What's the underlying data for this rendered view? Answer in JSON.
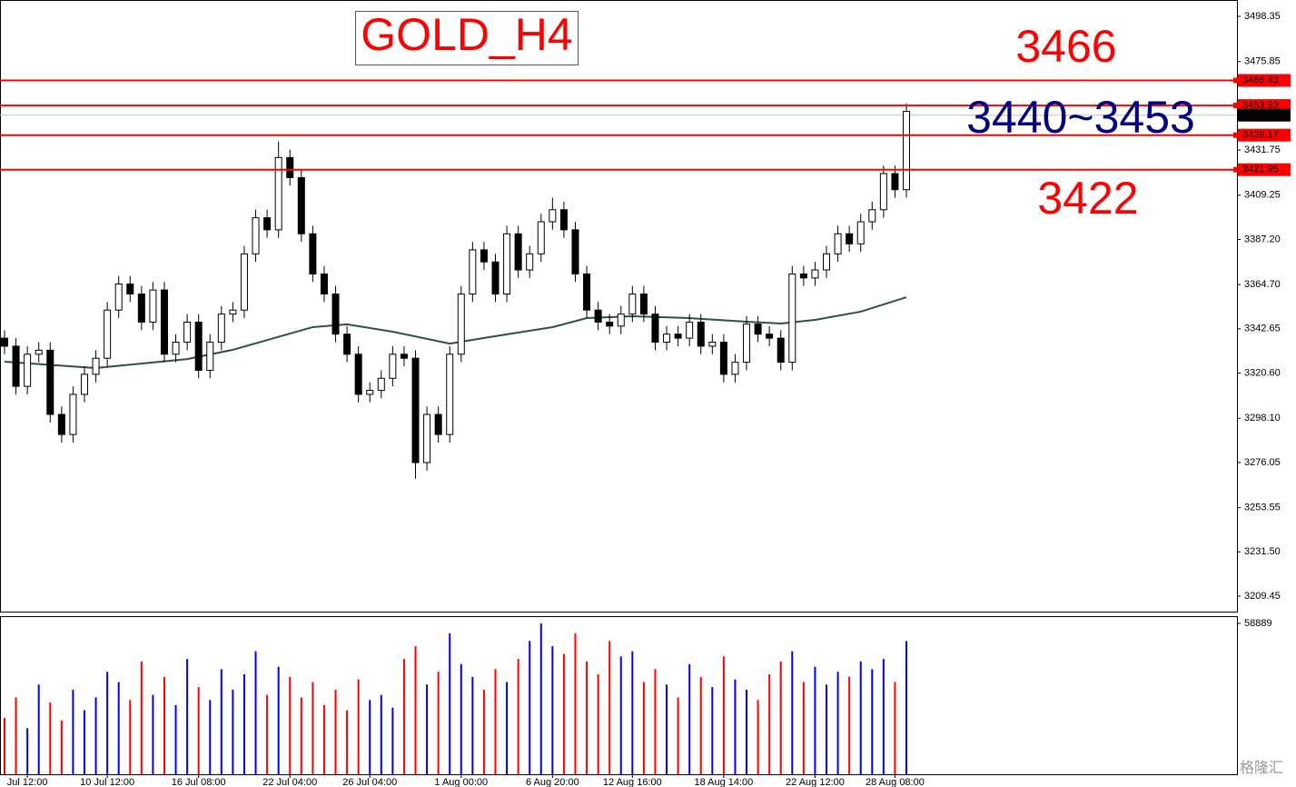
{
  "chart_data": {
    "type": "candlestick",
    "title": "GOLD_H4",
    "annotations": [
      {
        "text": "3466",
        "color": "#ff0000"
      },
      {
        "text": "3440~3453",
        "color": "#000080"
      },
      {
        "text": "3422",
        "color": "#ff0000"
      }
    ],
    "categories": [
      null,
      null,
      "Jul 12:00",
      null,
      null,
      null,
      null,
      null,
      null,
      "10 Jul 12:00",
      null,
      null,
      null,
      null,
      null,
      null,
      null,
      "16 Jul 08:00",
      null,
      null,
      null,
      null,
      null,
      null,
      null,
      "22 Jul 04:00",
      null,
      null,
      null,
      null,
      null,
      null,
      "26 Jul 04:00",
      null,
      null,
      null,
      null,
      null,
      null,
      null,
      "1 Aug 00:00",
      null,
      null,
      null,
      null,
      null,
      null,
      null,
      "6 Aug 20:00",
      null,
      null,
      null,
      null,
      null,
      null,
      "12 Aug 16:00",
      null,
      null,
      null,
      null,
      null,
      null,
      null,
      "18 Aug 14:00",
      null,
      null,
      null,
      null,
      null,
      null,
      null,
      "22 Aug 12:00",
      null,
      null,
      null,
      null,
      null,
      null,
      "28 Aug 08:00",
      null
    ],
    "open": [
      3338,
      3334,
      3314,
      3330,
      3332,
      3300,
      3290,
      3310,
      3320,
      3328,
      3352,
      3365,
      3360,
      3346,
      3362,
      3330,
      3336,
      3346,
      3322,
      3336,
      3350,
      3352,
      3380,
      3398,
      3392,
      3428,
      3418,
      3390,
      3370,
      3360,
      3340,
      3330,
      3310,
      3312,
      3318,
      3330,
      3328,
      3276,
      3300,
      3290,
      3330,
      3360,
      3382,
      3376,
      3360,
      3390,
      3372,
      3380,
      3396,
      3402,
      3392,
      3370,
      3352,
      3346,
      3344,
      3350,
      3360,
      3350,
      3336,
      3340,
      3338,
      3346,
      3334,
      3336,
      3320,
      3326,
      3345,
      3340,
      3338,
      3326,
      3370,
      3368,
      3372,
      3380,
      3390,
      3385,
      3396,
      3402,
      3420,
      3412
    ],
    "high": [
      3342,
      3338,
      3334,
      3336,
      3336,
      3304,
      3314,
      3324,
      3332,
      3356,
      3369,
      3369,
      3364,
      3366,
      3366,
      3340,
      3350,
      3350,
      3340,
      3354,
      3356,
      3384,
      3402,
      3402,
      3436,
      3432,
      3422,
      3394,
      3374,
      3364,
      3344,
      3334,
      3316,
      3322,
      3334,
      3334,
      3332,
      3304,
      3304,
      3334,
      3364,
      3386,
      3386,
      3380,
      3394,
      3394,
      3384,
      3400,
      3408,
      3406,
      3396,
      3374,
      3356,
      3350,
      3354,
      3364,
      3364,
      3354,
      3344,
      3344,
      3350,
      3350,
      3340,
      3340,
      3330,
      3349,
      3349,
      3344,
      3342,
      3374,
      3374,
      3376,
      3384,
      3394,
      3394,
      3400,
      3406,
      3424,
      3424,
      3455
    ],
    "low": [
      3330,
      3310,
      3310,
      3326,
      3296,
      3286,
      3286,
      3306,
      3316,
      3324,
      3348,
      3356,
      3342,
      3342,
      3326,
      3326,
      3332,
      3318,
      3318,
      3332,
      3346,
      3348,
      3376,
      3388,
      3388,
      3414,
      3386,
      3366,
      3356,
      3336,
      3326,
      3306,
      3306,
      3308,
      3314,
      3324,
      3268,
      3272,
      3286,
      3286,
      3326,
      3356,
      3372,
      3356,
      3356,
      3368,
      3368,
      3376,
      3392,
      3388,
      3366,
      3348,
      3342,
      3340,
      3340,
      3346,
      3346,
      3332,
      3332,
      3334,
      3334,
      3330,
      3330,
      3316,
      3316,
      3322,
      3336,
      3334,
      3322,
      3322,
      3364,
      3364,
      3368,
      3376,
      3381,
      3381,
      3392,
      3398,
      3408,
      3408
    ],
    "close": [
      3334,
      3314,
      3330,
      3332,
      3300,
      3290,
      3310,
      3320,
      3328,
      3352,
      3365,
      3360,
      3346,
      3362,
      3330,
      3336,
      3346,
      3322,
      3336,
      3350,
      3352,
      3380,
      3398,
      3392,
      3428,
      3418,
      3390,
      3370,
      3360,
      3340,
      3330,
      3310,
      3312,
      3318,
      3330,
      3328,
      3276,
      3300,
      3290,
      3330,
      3360,
      3382,
      3376,
      3360,
      3390,
      3372,
      3380,
      3396,
      3402,
      3392,
      3370,
      3352,
      3346,
      3344,
      3350,
      3360,
      3350,
      3336,
      3340,
      3338,
      3346,
      3334,
      3336,
      3320,
      3326,
      3345,
      3340,
      3338,
      3326,
      3370,
      3368,
      3372,
      3380,
      3390,
      3385,
      3396,
      3402,
      3420,
      3412,
      3451
    ],
    "up_color": "#ffffff",
    "down_color": "#000000",
    "ylim": [
      3201.75,
      3506.5
    ],
    "yticks": [
      3498.35,
      3475.85,
      3431.75,
      3409.25,
      {
        "value": 3387.2,
        "label": "3387.20"
      },
      {
        "value": 3364.7,
        "label": "3364.70"
      },
      3342.65,
      {
        "value": 3320.6,
        "label": "3320.60"
      },
      {
        "value": 3298.1,
        "label": "3298.10"
      },
      3276.05,
      3253.55,
      {
        "value": 3231.5,
        "label": "3231.50"
      },
      3209.45
    ],
    "ma": {
      "color": "#2f4f4f",
      "x": [
        0,
        8,
        16,
        20,
        27,
        30,
        34,
        39,
        43,
        48,
        51,
        55,
        60,
        65,
        68,
        71,
        75,
        79
      ],
      "values": [
        3326.3,
        3323.1,
        3327.6,
        3332.2,
        3343.5,
        3344.9,
        3341.2,
        3335.3,
        3339.0,
        3343.5,
        3348.0,
        3348.9,
        3348.0,
        3346.2,
        3345.3,
        3347.1,
        3351.2,
        3358.4
      ]
    },
    "levels": [
      {
        "value": 3466.43,
        "color": "#ff0000"
      },
      {
        "value": 3453.93,
        "color": "#ff0000"
      },
      {
        "value": 3439.17,
        "color": "#ff0000"
      },
      {
        "value": 3421.95,
        "color": "#ff0000"
      }
    ],
    "current_price": {
      "value": 3449.12,
      "color": "#c0c0c0"
    },
    "volume": {
      "values": [
        22000,
        30000,
        18000,
        35000,
        28000,
        21000,
        33000,
        25000,
        30000,
        40000,
        36000,
        29000,
        44000,
        31000,
        38000,
        27000,
        45000,
        34000,
        29000,
        41000,
        33000,
        39000,
        48000,
        31000,
        42000,
        38000,
        30000,
        36000,
        27000,
        33000,
        25000,
        37000,
        29000,
        31000,
        26000,
        45000,
        50000,
        35000,
        40000,
        55000,
        43000,
        38000,
        33000,
        41000,
        36000,
        45000,
        52000,
        58889,
        50000,
        47000,
        55000,
        44000,
        39000,
        52000,
        46000,
        48000,
        36000,
        41000,
        35000,
        30000,
        43000,
        38000,
        34000,
        46000,
        37000,
        33000,
        29000,
        39000,
        44000,
        48000,
        36000,
        42000,
        35000,
        40000,
        38000,
        44000,
        41000,
        45000,
        36000,
        52000
      ],
      "up_color": "#0000ff",
      "down_color": "#ff0000",
      "ylim": [
        0,
        61000
      ],
      "yticks": [
        58889
      ]
    },
    "grid": false
  },
  "watermark": "格隆汇"
}
